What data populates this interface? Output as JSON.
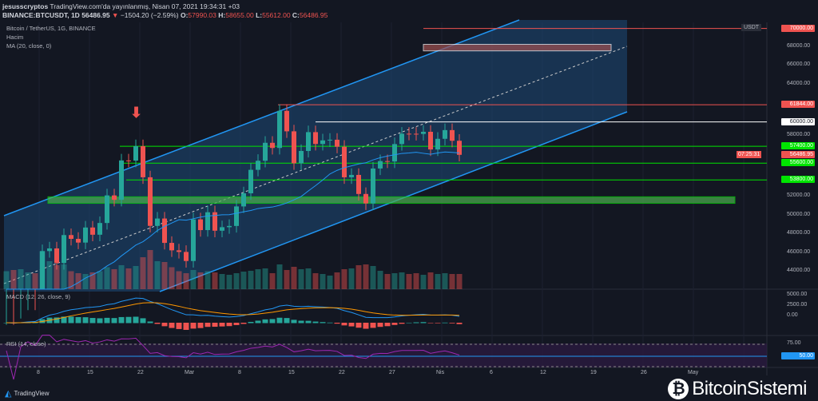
{
  "header": {
    "publisher": "jesusscryptos",
    "published": "TradingView.com'da yayınlanmış, Nisan 07, 2021 19:34:31 +03",
    "symbol": "BINANCE:BTCUSDT, 1D",
    "last": "56486.95",
    "change": "−1504.20 (−2.59%)",
    "o_label": "O:",
    "o": "57990.03",
    "h_label": "H:",
    "h": "58655.00",
    "l_label": "L:",
    "l": "55612.00",
    "c_label": "C:",
    "c": "56486.95"
  },
  "legend": {
    "title": "Bitcoin / TetherUS, 1G, BINANCE",
    "volume": "Hacim",
    "ma": "MA (20, close, 0)",
    "macd": "MACD (12, 26, close, 9)",
    "rsi": "RSI (14, close)"
  },
  "price_axis": {
    "currency": "USDT",
    "ticks": [
      "68000.00",
      "66000.00",
      "64000.00",
      "58000.00",
      "52000.00",
      "50000.00",
      "48000.00",
      "46000.00",
      "44000.00"
    ],
    "macd_ticks": [
      "5000.00",
      "2500.00",
      "0.00"
    ],
    "rsi_ticks": [
      "75.00"
    ]
  },
  "levels": [
    {
      "label": "70000.00",
      "color": "#ef5350",
      "value": 70000
    },
    {
      "label": "61844.00",
      "color": "#ef5350",
      "value": 61844
    },
    {
      "label": "60000.00",
      "color": "#ffffff",
      "value": 60000
    },
    {
      "label": "57400.00",
      "color": "#00e400",
      "value": 57400
    },
    {
      "label": "55600.00",
      "color": "#00e400",
      "value": 55600
    },
    {
      "label": "53800.00",
      "color": "#00e400",
      "value": 53800
    }
  ],
  "last_price_tag": {
    "price": "56486.95",
    "countdown": "07:25:31",
    "color": "#ef5350"
  },
  "rsi_tag": {
    "label": "50.00",
    "color": "#2196f3"
  },
  "time_axis": [
    "8",
    "15",
    "22",
    "Mar",
    "8",
    "15",
    "22",
    "27",
    "Nis",
    "6",
    "12",
    "19",
    "26",
    "May"
  ],
  "footer": {
    "brand": "TradingView"
  },
  "watermark": "BitcoinSistemi",
  "chart_data": {
    "type": "candlestick",
    "start": "Feb 3",
    "closes": [
      37618,
      36936,
      38290,
      39186,
      38903,
      46196,
      46481,
      44918,
      47909,
      47504,
      47105,
      48717,
      47945,
      49199,
      52149,
      51679,
      55888,
      55862,
      57412,
      54087,
      48891,
      49676,
      47073,
      46276,
      46106,
      45135,
      49587,
      48440,
      50349,
      48374,
      48751,
      48882,
      50971,
      52375,
      54884,
      55851,
      57773,
      57221,
      61188,
      59000,
      55585,
      56900,
      58912,
      57648,
      58030,
      58102,
      57351,
      54083,
      54340,
      52303,
      51293,
      55025,
      55817,
      55777,
      57635,
      58746,
      58740,
      58720,
      58950,
      57060,
      58200,
      59130,
      57990,
      56487
    ],
    "volumes": [
      45,
      48,
      50,
      42,
      40,
      95,
      70,
      60,
      62,
      45,
      40,
      38,
      42,
      45,
      55,
      50,
      60,
      52,
      58,
      80,
      98,
      70,
      68,
      55,
      45,
      40,
      48,
      42,
      45,
      42,
      38,
      36,
      40,
      44,
      46,
      50,
      52,
      40,
      62,
      48,
      56,
      50,
      52,
      40,
      38,
      34,
      42,
      50,
      52,
      60,
      62,
      58,
      46,
      38,
      40,
      42,
      38,
      40,
      36,
      42,
      38,
      40,
      38,
      38
    ],
    "ylim": [
      42000,
      71000
    ]
  }
}
